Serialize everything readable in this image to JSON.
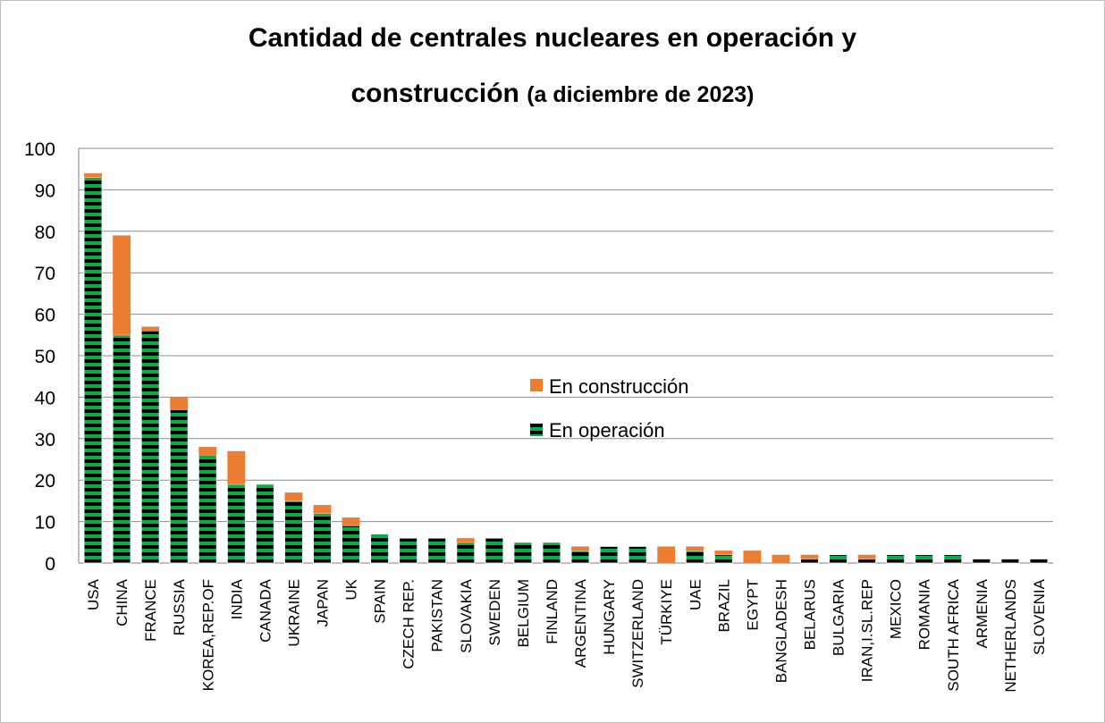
{
  "chart_data": {
    "type": "bar",
    "stacked": true,
    "title": "Cantidad de centrales nucleares en operación y",
    "title_line2_main": "construcción",
    "title_line2_sub": "(a diciembre de 2023)",
    "ylim": [
      0,
      100
    ],
    "yticks": [
      0,
      10,
      20,
      30,
      40,
      50,
      60,
      70,
      80,
      90,
      100
    ],
    "grid": true,
    "legend_position": "center-right",
    "categories": [
      "USA",
      "CHINA",
      "FRANCE",
      "RUSSIA",
      "KOREA,REP.OF",
      "INDIA",
      "CANADA",
      "UKRAINE",
      "JAPAN",
      "UK",
      "SPAIN",
      "CZECH REP.",
      "PAKISTAN",
      "SLOVAKIA",
      "SWEDEN",
      "BELGIUM",
      "FINLAND",
      "ARGENTINA",
      "HUNGARY",
      "SWITZERLAND",
      "TÜRKIYE",
      "UAE",
      "BRAZIL",
      "EGYPT",
      "BANGLADESH",
      "BELARUS",
      "BULGARIA",
      "IRAN,I.SL.REP",
      "MEXICO",
      "ROMANIA",
      "SOUTH AFRICA",
      "ARMENIA",
      "NETHERLANDS",
      "SLOVENIA"
    ],
    "series": [
      {
        "name": "En operación",
        "color": "#00b050",
        "stripe_color": "#000000",
        "values": [
          93,
          55,
          56,
          37,
          26,
          19,
          19,
          15,
          12,
          9,
          7,
          6,
          6,
          5,
          6,
          5,
          5,
          3,
          4,
          4,
          0,
          3,
          2,
          0,
          0,
          1,
          2,
          1,
          2,
          2,
          2,
          1,
          1,
          1
        ]
      },
      {
        "name": "En construcción",
        "color": "#ed7d31",
        "values": [
          1,
          24,
          1,
          3,
          2,
          8,
          0,
          2,
          2,
          2,
          0,
          0,
          0,
          1,
          0,
          0,
          0,
          1,
          0,
          0,
          4,
          1,
          1,
          3,
          2,
          1,
          0,
          1,
          0,
          0,
          0,
          0,
          0,
          0
        ]
      }
    ]
  }
}
